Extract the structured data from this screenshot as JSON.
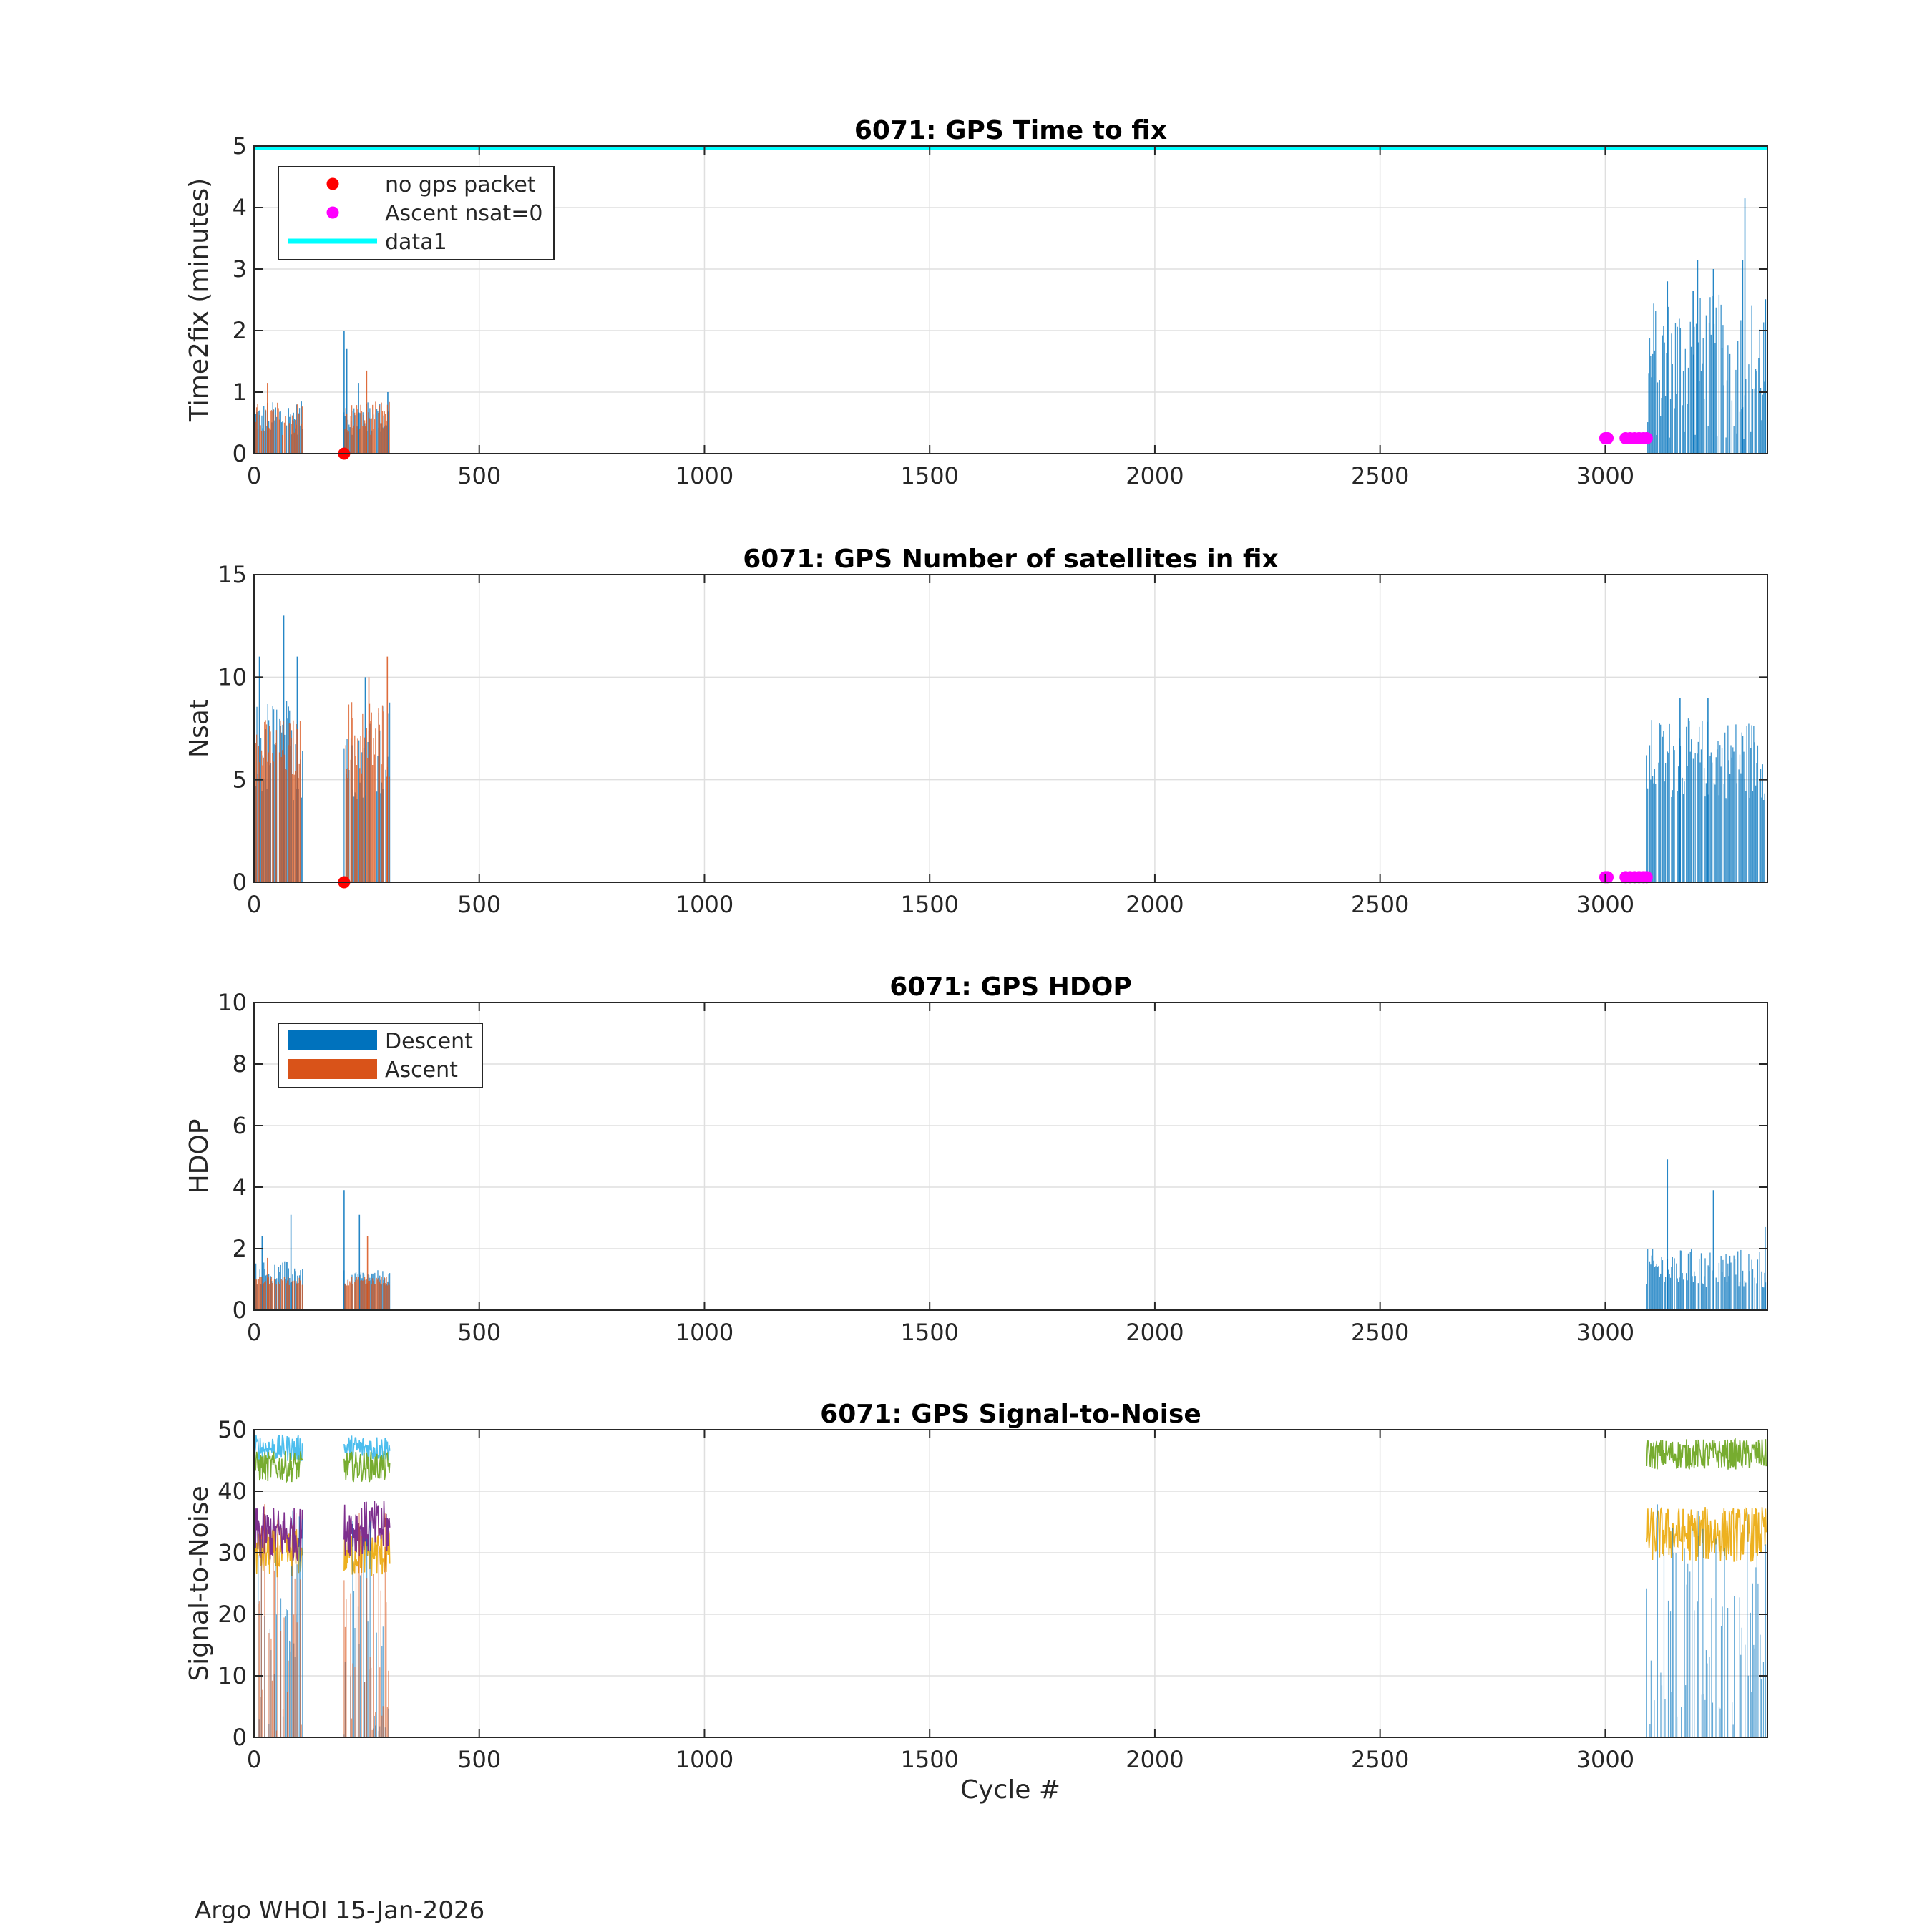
{
  "footer": "Argo WHOI 15-Jan-2026",
  "xlabel": "Cycle #",
  "xlim": [
    0,
    3360
  ],
  "xticks": [
    0,
    500,
    1000,
    1500,
    2000,
    2500,
    3000
  ],
  "colors": {
    "descent": "#0072BD",
    "ascent": "#D95319",
    "no_gps_packet": "#FF0000",
    "ascent_nsat0": "#FF00FF",
    "data1": "#00FFFF",
    "snr_cyan": "#4DBEEE",
    "snr_green": "#77AC30",
    "snr_purple": "#7E2F8E",
    "snr_yellow": "#EDB120"
  },
  "chart_data": [
    {
      "type": "bar",
      "title": "6071: GPS Time to fix",
      "ylabel": "Time2fix (minutes)",
      "xlabel": "",
      "xlim": [
        0,
        3360
      ],
      "ylim": [
        0,
        5
      ],
      "yticks": [
        0,
        1,
        2,
        3,
        4,
        5
      ],
      "grid": true,
      "legend": {
        "placement": "top-left",
        "entries": [
          "no gps packet",
          "Ascent nsat=0",
          "data1"
        ]
      },
      "series": [
        {
          "name": "Descent",
          "segments": [
            {
              "x0": 2,
              "x1": 108,
              "min": 0.3,
              "max": 0.85
            },
            {
              "x0": 200,
              "x1": 302,
              "min": 0.3,
              "max": 0.85
            },
            {
              "x0": 3092,
              "x1": 3358,
              "min": 0.2,
              "max": 2.6
            }
          ],
          "peaks": [
            [
              200,
              2.0
            ],
            [
              206,
              1.7
            ],
            [
              232,
              1.15
            ],
            [
              297,
              1.0
            ],
            [
              3138,
              2.8
            ],
            [
              3195,
              2.65
            ],
            [
              3205,
              3.15
            ],
            [
              3240,
              3.0
            ],
            [
              3305,
              3.15
            ],
            [
              3310,
              4.15
            ],
            [
              3355,
              2.5
            ]
          ]
        },
        {
          "name": "Ascent",
          "segments": [
            {
              "x0": 2,
              "x1": 108,
              "min": 0.3,
              "max": 0.85
            },
            {
              "x0": 200,
              "x1": 302,
              "min": 0.3,
              "max": 0.85
            }
          ],
          "peaks": [
            [
              30,
              1.15
            ],
            [
              250,
              1.35
            ]
          ]
        },
        {
          "name": "no gps packet",
          "points": [
            [
              200,
              0
            ]
          ]
        },
        {
          "name": "Ascent nsat=0",
          "points": [
            [
              3000,
              0.25
            ],
            [
              3005,
              0.25
            ],
            [
              3045,
              0.25
            ],
            [
              3055,
              0.25
            ],
            [
              3065,
              0.25
            ],
            [
              3075,
              0.25
            ],
            [
              3085,
              0.25
            ],
            [
              3092,
              0.25
            ]
          ]
        },
        {
          "name": "data1",
          "y": 5
        }
      ]
    },
    {
      "type": "bar",
      "title": "6071: GPS Number of satellites in fix",
      "ylabel": "Nsat",
      "xlabel": "",
      "xlim": [
        0,
        3360
      ],
      "ylim": [
        0,
        15
      ],
      "yticks": [
        0,
        5,
        10,
        15
      ],
      "grid": true,
      "series": [
        {
          "name": "Descent",
          "segments": [
            {
              "x0": 2,
              "x1": 108,
              "min": 4,
              "max": 9
            },
            {
              "x0": 200,
              "x1": 302,
              "min": 4,
              "max": 9
            },
            {
              "x0": 3092,
              "x1": 3358,
              "min": 4,
              "max": 8
            }
          ],
          "peaks": [
            [
              12,
              11
            ],
            [
              66,
              13
            ],
            [
              96,
              11
            ],
            [
              247,
              10
            ],
            [
              3166,
              9
            ],
            [
              3228,
              9
            ]
          ]
        },
        {
          "name": "Ascent",
          "segments": [
            {
              "x0": 2,
              "x1": 108,
              "min": 5,
              "max": 8
            },
            {
              "x0": 200,
              "x1": 302,
              "min": 5,
              "max": 9
            }
          ],
          "peaks": [
            [
              296,
              11
            ],
            [
              255,
              10
            ]
          ]
        },
        {
          "name": "no gps packet",
          "points": [
            [
              200,
              0
            ]
          ]
        },
        {
          "name": "Ascent nsat=0",
          "points": [
            [
              3000,
              0.25
            ],
            [
              3005,
              0.25
            ],
            [
              3045,
              0.25
            ],
            [
              3055,
              0.25
            ],
            [
              3065,
              0.25
            ],
            [
              3075,
              0.25
            ],
            [
              3085,
              0.25
            ],
            [
              3092,
              0.25
            ]
          ]
        }
      ]
    },
    {
      "type": "bar",
      "title": "6071: GPS HDOP",
      "ylabel": "HDOP",
      "xlabel": "",
      "xlim": [
        0,
        3360
      ],
      "ylim": [
        0,
        10
      ],
      "yticks": [
        0,
        2,
        4,
        6,
        8,
        10
      ],
      "grid": true,
      "legend": {
        "placement": "top-left",
        "entries": [
          "Descent",
          "Ascent"
        ]
      },
      "series": [
        {
          "name": "Descent",
          "segments": [
            {
              "x0": 2,
              "x1": 108,
              "min": 0.8,
              "max": 1.6
            },
            {
              "x0": 200,
              "x1": 302,
              "min": 0.8,
              "max": 1.3
            },
            {
              "x0": 3092,
              "x1": 3358,
              "min": 0.7,
              "max": 2.0
            }
          ],
          "peaks": [
            [
              18,
              2.4
            ],
            [
              82,
              3.1
            ],
            [
              200,
              3.9
            ],
            [
              234,
              3.1
            ],
            [
              3138,
              4.9
            ],
            [
              3240,
              3.9
            ],
            [
              3355,
              2.7
            ]
          ]
        },
        {
          "name": "Ascent",
          "segments": [
            {
              "x0": 2,
              "x1": 108,
              "min": 0.8,
              "max": 1.1
            },
            {
              "x0": 200,
              "x1": 302,
              "min": 0.8,
              "max": 1.1
            }
          ],
          "peaks": [
            [
              30,
              1.7
            ],
            [
              252,
              2.4
            ]
          ]
        }
      ]
    },
    {
      "type": "line",
      "title": "6071: GPS Signal-to-Noise",
      "ylabel": "Signal-to-Noise",
      "xlabel": "Cycle #",
      "xlim": [
        0,
        3360
      ],
      "ylim": [
        0,
        50
      ],
      "yticks": [
        0,
        10,
        20,
        30,
        40,
        50
      ],
      "grid": true,
      "series": [
        {
          "name": "",
          "color": "#4DBEEE",
          "segments": [
            {
              "x0": 2,
              "x1": 108,
              "center": 47,
              "noise": 2.2
            },
            {
              "x0": 200,
              "x1": 302,
              "center": 47,
              "noise": 2.2
            }
          ]
        },
        {
          "name": "",
          "color": "#77AC30",
          "segments": [
            {
              "x0": 2,
              "x1": 108,
              "center": 44,
              "noise": 2.5
            },
            {
              "x0": 200,
              "x1": 302,
              "center": 44,
              "noise": 2.5
            },
            {
              "x0": 3092,
              "x1": 3358,
              "center": 46,
              "noise": 2.5
            }
          ]
        },
        {
          "name": "",
          "color": "#EDB120",
          "segments": [
            {
              "x0": 2,
              "x1": 108,
              "center": 30,
              "noise": 4
            },
            {
              "x0": 200,
              "x1": 302,
              "center": 30,
              "noise": 4
            },
            {
              "x0": 3092,
              "x1": 3358,
              "center": 33,
              "noise": 4.5
            }
          ]
        },
        {
          "name": "",
          "color": "#7E2F8E",
          "segments": [
            {
              "x0": 2,
              "x1": 108,
              "center": 33,
              "noise": 4.5
            },
            {
              "x0": 200,
              "x1": 302,
              "center": 34,
              "noise": 4.5
            }
          ]
        },
        {
          "name": "",
          "color": "#0072BD",
          "bars": [
            {
              "x0": 2,
              "x1": 108
            },
            {
              "x0": 200,
              "x1": 302
            },
            {
              "x0": 3092,
              "x1": 3358
            }
          ],
          "min": 0,
          "max": 38
        },
        {
          "name": "",
          "color": "#D95319",
          "bars": [
            {
              "x0": 2,
              "x1": 108
            },
            {
              "x0": 200,
              "x1": 302
            }
          ],
          "min": 0,
          "max": 38
        }
      ]
    }
  ]
}
